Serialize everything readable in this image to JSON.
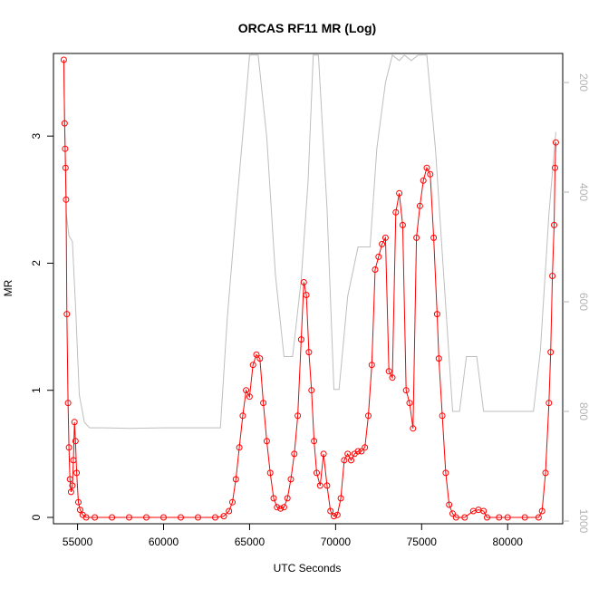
{
  "chart_data": {
    "type": "scatter",
    "title": "ORCAS RF11 MR (Log)",
    "xlabel": "UTC Seconds",
    "ylabel": "MR",
    "xlim": [
      53600,
      83200
    ],
    "ylim": [
      -0.05,
      3.65
    ],
    "xticks": [
      55000,
      60000,
      65000,
      70000,
      75000,
      80000
    ],
    "yticks": [
      0,
      1,
      2,
      3
    ],
    "right_axis": {
      "label": "",
      "reversed": true,
      "ylim": [
        1005,
        147
      ],
      "ticks": [
        200,
        400,
        600,
        800,
        1000
      ],
      "color": "#b3b3b3"
    },
    "grid": false,
    "legend": "none",
    "series": [
      {
        "axis": "left",
        "color": "#ff0000",
        "style": "open circles joined by line",
        "points": [
          [
            54200,
            3.6
          ],
          [
            54250,
            3.1
          ],
          [
            54280,
            2.9
          ],
          [
            54300,
            2.75
          ],
          [
            54330,
            2.5
          ],
          [
            54380,
            1.6
          ],
          [
            54450,
            0.9
          ],
          [
            54500,
            0.55
          ],
          [
            54560,
            0.3
          ],
          [
            54620,
            0.2
          ],
          [
            54700,
            0.25
          ],
          [
            54760,
            0.45
          ],
          [
            54820,
            0.75
          ],
          [
            54880,
            0.6
          ],
          [
            54950,
            0.35
          ],
          [
            55050,
            0.12
          ],
          [
            55150,
            0.06
          ],
          [
            55300,
            0.02
          ],
          [
            55500,
            0.0
          ],
          [
            56000,
            0.0
          ],
          [
            57000,
            0.0
          ],
          [
            58000,
            0.0
          ],
          [
            59000,
            0.0
          ],
          [
            60000,
            0.0
          ],
          [
            61000,
            0.0
          ],
          [
            62000,
            0.0
          ],
          [
            63000,
            0.0
          ],
          [
            63500,
            0.01
          ],
          [
            63800,
            0.05
          ],
          [
            64000,
            0.12
          ],
          [
            64200,
            0.3
          ],
          [
            64400,
            0.55
          ],
          [
            64600,
            0.8
          ],
          [
            64800,
            1.0
          ],
          [
            65000,
            0.95
          ],
          [
            65200,
            1.2
          ],
          [
            65400,
            1.28
          ],
          [
            65600,
            1.25
          ],
          [
            65800,
            0.9
          ],
          [
            66000,
            0.6
          ],
          [
            66200,
            0.35
          ],
          [
            66400,
            0.15
          ],
          [
            66600,
            0.08
          ],
          [
            66800,
            0.07
          ],
          [
            67000,
            0.08
          ],
          [
            67200,
            0.15
          ],
          [
            67400,
            0.3
          ],
          [
            67600,
            0.5
          ],
          [
            67800,
            0.8
          ],
          [
            68000,
            1.4
          ],
          [
            68150,
            1.85
          ],
          [
            68300,
            1.75
          ],
          [
            68450,
            1.3
          ],
          [
            68600,
            1.0
          ],
          [
            68750,
            0.6
          ],
          [
            68900,
            0.35
          ],
          [
            69100,
            0.25
          ],
          [
            69300,
            0.5
          ],
          [
            69500,
            0.25
          ],
          [
            69700,
            0.05
          ],
          [
            69900,
            0.01
          ],
          [
            70100,
            0.02
          ],
          [
            70300,
            0.15
          ],
          [
            70500,
            0.45
          ],
          [
            70700,
            0.5
          ],
          [
            70900,
            0.45
          ],
          [
            71100,
            0.5
          ],
          [
            71300,
            0.52
          ],
          [
            71500,
            0.52
          ],
          [
            71700,
            0.55
          ],
          [
            71900,
            0.8
          ],
          [
            72100,
            1.2
          ],
          [
            72300,
            1.95
          ],
          [
            72500,
            2.05
          ],
          [
            72700,
            2.15
          ],
          [
            72900,
            2.2
          ],
          [
            73100,
            1.15
          ],
          [
            73300,
            1.1
          ],
          [
            73500,
            2.4
          ],
          [
            73700,
            2.55
          ],
          [
            73900,
            2.3
          ],
          [
            74100,
            1.0
          ],
          [
            74300,
            0.9
          ],
          [
            74500,
            0.7
          ],
          [
            74700,
            2.2
          ],
          [
            74900,
            2.45
          ],
          [
            75100,
            2.65
          ],
          [
            75300,
            2.75
          ],
          [
            75500,
            2.7
          ],
          [
            75700,
            2.2
          ],
          [
            75900,
            1.6
          ],
          [
            76000,
            1.25
          ],
          [
            76200,
            0.8
          ],
          [
            76400,
            0.35
          ],
          [
            76600,
            0.1
          ],
          [
            76800,
            0.03
          ],
          [
            77000,
            0.0
          ],
          [
            77500,
            0.0
          ],
          [
            78000,
            0.05
          ],
          [
            78300,
            0.06
          ],
          [
            78600,
            0.05
          ],
          [
            78800,
            0.0
          ],
          [
            79500,
            0.0
          ],
          [
            80000,
            0.0
          ],
          [
            81000,
            0.0
          ],
          [
            81800,
            0.0
          ],
          [
            82000,
            0.05
          ],
          [
            82200,
            0.35
          ],
          [
            82400,
            0.9
          ],
          [
            82500,
            1.3
          ],
          [
            82600,
            1.9
          ],
          [
            82700,
            2.3
          ],
          [
            82750,
            2.75
          ],
          [
            82800,
            2.95
          ]
        ]
      },
      {
        "axis": "right",
        "color": "#bebebe",
        "style": "line",
        "points": [
          [
            54200,
            180
          ],
          [
            54350,
            440
          ],
          [
            54500,
            480
          ],
          [
            54700,
            490
          ],
          [
            54900,
            620
          ],
          [
            55100,
            770
          ],
          [
            55400,
            820
          ],
          [
            55700,
            830
          ],
          [
            56500,
            830
          ],
          [
            58000,
            831
          ],
          [
            60000,
            830
          ],
          [
            62000,
            830
          ],
          [
            63300,
            830
          ],
          [
            63700,
            630
          ],
          [
            64200,
            440
          ],
          [
            64700,
            260
          ],
          [
            65000,
            150
          ],
          [
            65500,
            150
          ],
          [
            66000,
            300
          ],
          [
            66500,
            550
          ],
          [
            67000,
            700
          ],
          [
            67500,
            700
          ],
          [
            68000,
            560
          ],
          [
            68400,
            380
          ],
          [
            68700,
            150
          ],
          [
            69000,
            150
          ],
          [
            69500,
            430
          ],
          [
            69900,
            760
          ],
          [
            70200,
            760
          ],
          [
            70700,
            590
          ],
          [
            71300,
            500
          ],
          [
            72000,
            500
          ],
          [
            72400,
            320
          ],
          [
            72900,
            200
          ],
          [
            73300,
            150
          ],
          [
            73700,
            160
          ],
          [
            74000,
            150
          ],
          [
            74400,
            160
          ],
          [
            74800,
            150
          ],
          [
            75300,
            150
          ],
          [
            75800,
            320
          ],
          [
            76300,
            560
          ],
          [
            76800,
            800
          ],
          [
            77200,
            800
          ],
          [
            77600,
            700
          ],
          [
            78200,
            700
          ],
          [
            78600,
            800
          ],
          [
            79500,
            800
          ],
          [
            80500,
            800
          ],
          [
            81500,
            800
          ],
          [
            81900,
            690
          ],
          [
            82400,
            440
          ],
          [
            82800,
            290
          ]
        ]
      }
    ]
  }
}
